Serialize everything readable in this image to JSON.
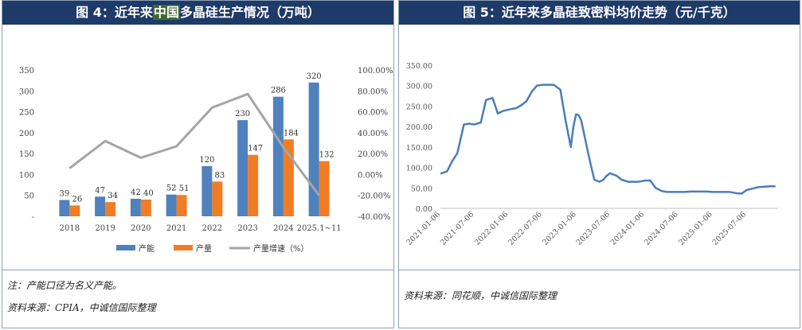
{
  "left": {
    "title_pre": "图 4：近年来",
    "title_hl": "中国",
    "title_post": "多晶硅生产情况（万吨）",
    "note": "注：产能口径为名义产能。",
    "source": "资料来源：CPIA，中诚信国际整理"
  },
  "right": {
    "title": "图 5：近年来多晶硅致密料均价走势（元/千克）",
    "source": "资料来源：同花顺，中诚信国际整理"
  },
  "colors": {
    "capacity": "#4f81bd",
    "output": "#f07d26",
    "growth": "#a5a5a5",
    "price": "#4a7ebb",
    "header_bg": "#1e3a68"
  },
  "chart_data": [
    {
      "type": "bar",
      "categories": [
        "2018",
        "2019",
        "2020",
        "2021",
        "2022",
        "2023",
        "2024",
        "2025.1~11"
      ],
      "series": [
        {
          "name": "产能",
          "type": "bar",
          "axis": "left",
          "values": [
            39,
            47,
            42,
            52,
            120,
            230,
            286,
            320
          ]
        },
        {
          "name": "产量",
          "type": "bar",
          "axis": "left",
          "values": [
            26,
            34,
            40,
            51,
            83,
            147,
            184,
            132
          ]
        },
        {
          "name": "产量增速（%）",
          "type": "line",
          "axis": "right",
          "values": [
            6,
            32,
            16,
            27,
            64,
            77,
            26,
            -20
          ]
        }
      ],
      "y_left": {
        "min": -0.0001,
        "max": 350,
        "ticks": [
          "-",
          "50",
          "100",
          "150",
          "200",
          "250",
          "300",
          "350"
        ]
      },
      "y_right": {
        "min": -40,
        "max": 100,
        "ticks": [
          "-40.00%",
          "-20.00%",
          "0.00%",
          "20.00%",
          "40.00%",
          "60.00%",
          "80.00%",
          "100.00%"
        ]
      },
      "legend_position": "bottom"
    },
    {
      "type": "line",
      "x_ticks": [
        "2021-01-06",
        "2021-07-06",
        "2022-01-06",
        "2022-07-06",
        "2023-01-06",
        "2023-07-06",
        "2024-01-06",
        "2024-07-06",
        "2025-01-06",
        "2025-07-06"
      ],
      "ylim": [
        0,
        350
      ],
      "y_ticks": [
        "0.00",
        "50.00",
        "100.00",
        "150.00",
        "200.00",
        "250.00",
        "300.00",
        "350.00"
      ],
      "x": [
        "2021-01-06",
        "2021-02-10",
        "2021-03-10",
        "2021-04-07",
        "2021-05-12",
        "2021-06-09",
        "2021-07-07",
        "2021-08-11",
        "2021-09-08",
        "2021-10-13",
        "2021-11-10",
        "2021-12-08",
        "2022-01-12",
        "2022-02-16",
        "2022-03-16",
        "2022-04-13",
        "2022-05-11",
        "2022-06-08",
        "2022-07-06",
        "2022-08-10",
        "2022-09-07",
        "2022-10-12",
        "2022-11-09",
        "2022-12-07",
        "2022-12-21",
        "2023-01-04",
        "2023-01-18",
        "2023-02-01",
        "2023-02-15",
        "2023-03-15",
        "2023-04-12",
        "2023-05-10",
        "2023-05-31",
        "2023-06-14",
        "2023-07-05",
        "2023-08-09",
        "2023-09-06",
        "2023-10-11",
        "2023-11-08",
        "2023-12-06",
        "2024-01-10",
        "2024-02-07",
        "2024-03-06",
        "2024-04-10",
        "2024-05-08",
        "2024-06-05",
        "2024-07-10",
        "2024-08-07",
        "2024-09-11",
        "2024-10-09",
        "2024-11-06",
        "2024-12-11",
        "2025-01-08",
        "2025-02-12",
        "2025-03-12",
        "2025-04-09",
        "2025-05-14",
        "2025-06-11",
        "2025-07-09",
        "2025-08-06",
        "2025-09-10",
        "2025-10-15",
        "2025-11-12",
        "2025-12-10"
      ],
      "y": [
        85,
        90,
        115,
        135,
        205,
        207,
        205,
        210,
        265,
        270,
        232,
        238,
        242,
        245,
        252,
        262,
        285,
        300,
        302,
        302,
        302,
        290,
        215,
        150,
        200,
        230,
        228,
        215,
        185,
        125,
        70,
        65,
        70,
        78,
        86,
        80,
        70,
        65,
        65,
        65,
        68,
        68,
        50,
        42,
        40,
        40,
        40,
        40,
        41,
        41,
        41,
        41,
        40,
        40,
        40,
        40,
        37,
        36,
        45,
        48,
        52,
        53,
        54,
        54
      ],
      "legend_position": "none"
    }
  ]
}
